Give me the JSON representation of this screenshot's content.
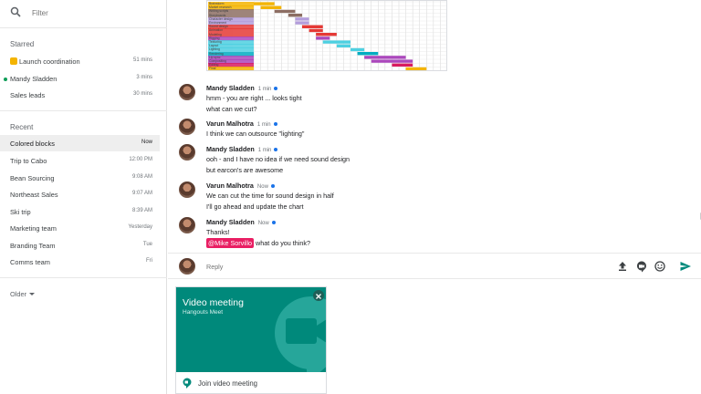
{
  "search": {
    "placeholder": "Filter"
  },
  "sidebar": {
    "starred_title": "Starred",
    "starred": [
      {
        "label": "Launch coordination",
        "time": "51 mins",
        "emoji": true
      },
      {
        "label": "Mandy Sladden",
        "time": "3 mins",
        "online": true
      },
      {
        "label": "Sales leads",
        "time": "30 mins"
      }
    ],
    "recent_title": "Recent",
    "recent": [
      {
        "label": "Colored blocks",
        "time": "Now",
        "active": true
      },
      {
        "label": "Trip to Cabo",
        "time": "12:00 PM"
      },
      {
        "label": "Bean Sourcing",
        "time": "9:08 AM"
      },
      {
        "label": "Northeast Sales",
        "time": "9:07 AM"
      },
      {
        "label": "Ski trip",
        "time": "8:39 AM"
      },
      {
        "label": "Marketing team",
        "time": "Yesterday"
      },
      {
        "label": "Branding Team",
        "time": "Tue"
      },
      {
        "label": "Comms team",
        "time": "Fri"
      }
    ],
    "older_label": "Older"
  },
  "gantt": {
    "rows": [
      {
        "label": "Brainstorm",
        "color": "#f4b400",
        "start": 0,
        "len": 3
      },
      {
        "label": "Market research",
        "color": "#f4b400",
        "start": 1,
        "len": 3
      },
      {
        "label": "Writing scripts",
        "color": "#8d6e63",
        "start": 3,
        "len": 3
      },
      {
        "label": "Storyboards",
        "color": "#8d6e63",
        "start": 5,
        "len": 2
      },
      {
        "label": "Character design",
        "color": "#b39ddb",
        "start": 6,
        "len": 2
      },
      {
        "label": "Environment",
        "color": "#b39ddb",
        "start": 6,
        "len": 2
      },
      {
        "label": "Sound design",
        "color": "#e53935",
        "start": 7,
        "len": 3
      },
      {
        "label": "Animation",
        "color": "#e53935",
        "start": 8,
        "len": 2
      },
      {
        "label": "Modeling",
        "color": "#e53935",
        "start": 9,
        "len": 3
      },
      {
        "label": "Rigging",
        "color": "#ab47bc",
        "start": 9,
        "len": 2
      },
      {
        "label": "Texturing",
        "color": "#4dd0e1",
        "start": 10,
        "len": 4
      },
      {
        "label": "Layout",
        "color": "#4dd0e1",
        "start": 12,
        "len": 2
      },
      {
        "label": "Lighting",
        "color": "#4dd0e1",
        "start": 14,
        "len": 2
      },
      {
        "label": "Rendering",
        "color": "#00acc1",
        "start": 15,
        "len": 3
      },
      {
        "label": "Lip sync",
        "color": "#ab47bc",
        "start": 16,
        "len": 6
      },
      {
        "label": "Compositing",
        "color": "#ab47bc",
        "start": 17,
        "len": 6
      },
      {
        "label": "Editing",
        "color": "#d81b60",
        "start": 20,
        "len": 3
      },
      {
        "label": "Final",
        "color": "#f4b400",
        "start": 22,
        "len": 3
      }
    ],
    "columns": 28
  },
  "messages": [
    {
      "name": "Mandy Sladden",
      "time": "1 min",
      "lines": [
        "hmm - you are right ... looks tight",
        "what can we cut?"
      ]
    },
    {
      "name": "Varun Malhotra",
      "time": "1 min",
      "lines": [
        "I think we can outsource \"lighting\""
      ]
    },
    {
      "name": "Mandy Sladden",
      "time": "1 min",
      "lines": [
        "ooh - and I have no idea if we need sound design",
        "but earcon's are awesome"
      ]
    },
    {
      "name": "Varun Malhotra",
      "time": "Now",
      "lines": [
        "We can cut the time for sound design in half",
        "I'll go ahead and update the chart"
      ]
    },
    {
      "name": "Mandy Sladden",
      "time": "Now",
      "lines": [
        "Thanks!"
      ],
      "mention": "@Mike Sorvillo",
      "mention_rest": "what do you think?"
    }
  ],
  "reply": {
    "placeholder": "Reply"
  },
  "video_card": {
    "title": "Video meeting",
    "subtitle": "Hangouts Meet",
    "join_label": "Join video meeting",
    "color": "#00897b"
  }
}
